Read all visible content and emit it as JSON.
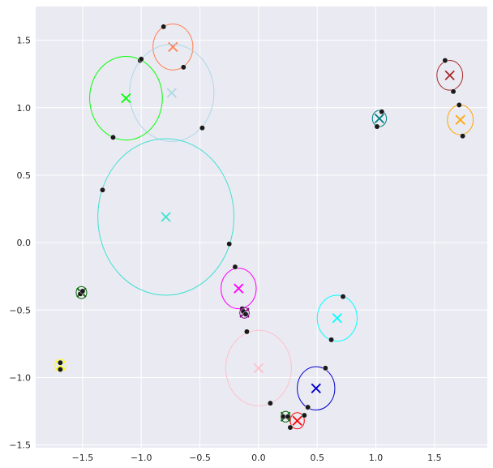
{
  "chart_data": {
    "type": "scatter",
    "title": "",
    "xlabel": "",
    "ylabel": "",
    "xlim": [
      -1.9,
      1.95
    ],
    "ylim": [
      -1.52,
      1.75
    ],
    "xticks": [
      -1.5,
      -1.0,
      -0.5,
      0.0,
      0.5,
      1.0,
      1.5
    ],
    "yticks": [
      -1.5,
      -1.0,
      -0.5,
      0.0,
      0.5,
      1.0,
      1.5
    ],
    "xtick_labels": [
      "−1.5",
      "−1.0",
      "−0.5",
      "0.0",
      "0.5",
      "1.0",
      "1.5"
    ],
    "ytick_labels": [
      "−1.5",
      "−1.0",
      "−0.5",
      "0.0",
      "0.5",
      "1.0",
      "1.5"
    ],
    "grid": true,
    "background": "#eaeaf2",
    "grid_color": "#ffffff",
    "clusters": [
      {
        "color": "#ff7f50",
        "center": [
          -0.73,
          1.45
        ],
        "radius": [
          0.17,
          0.17
        ],
        "points": [
          [
            -0.81,
            1.6
          ],
          [
            -0.64,
            1.3
          ]
        ]
      },
      {
        "color": "#add8e6",
        "center": [
          -0.74,
          1.11
        ],
        "radius": [
          0.36,
          0.36
        ],
        "points": [
          [
            -1.01,
            1.35
          ],
          [
            -0.48,
            0.85
          ]
        ]
      },
      {
        "color": "#00ff00",
        "center": [
          -1.13,
          1.07
        ],
        "radius": [
          0.31,
          0.31
        ],
        "points": [
          [
            -1.24,
            0.78
          ],
          [
            -1.0,
            1.36
          ]
        ]
      },
      {
        "color": "#40e0d0",
        "center": [
          -0.79,
          0.19
        ],
        "radius": [
          0.58,
          0.58
        ],
        "points": [
          [
            -1.33,
            0.39
          ],
          [
            -0.25,
            -0.01
          ]
        ]
      },
      {
        "color": "#ff00ff",
        "center": [
          -0.17,
          -0.34
        ],
        "radius": [
          0.15,
          0.15
        ],
        "points": [
          [
            -0.2,
            -0.18
          ],
          [
            -0.14,
            -0.49
          ]
        ]
      },
      {
        "color": "#800080",
        "center": [
          -0.12,
          -0.52
        ],
        "radius": [
          0.04,
          0.04
        ],
        "points": [
          [
            -0.13,
            -0.51
          ],
          [
            -0.11,
            -0.53
          ]
        ]
      },
      {
        "color": "#ffc0cb",
        "center": [
          0.0,
          -0.93
        ],
        "radius": [
          0.28,
          0.28
        ],
        "points": [
          [
            -0.1,
            -0.66
          ],
          [
            0.1,
            -1.19
          ]
        ]
      },
      {
        "color": "#00ffff",
        "center": [
          0.67,
          -0.56
        ],
        "radius": [
          0.17,
          0.17
        ],
        "points": [
          [
            0.72,
            -0.4
          ],
          [
            0.62,
            -0.72
          ]
        ]
      },
      {
        "color": "#0000cd",
        "center": [
          0.49,
          -1.08
        ],
        "radius": [
          0.16,
          0.16
        ],
        "points": [
          [
            0.57,
            -0.93
          ],
          [
            0.42,
            -1.22
          ]
        ]
      },
      {
        "color": "#ff0000",
        "center": [
          0.33,
          -1.32
        ],
        "radius": [
          0.06,
          0.06
        ],
        "points": [
          [
            0.39,
            -1.28
          ],
          [
            0.27,
            -1.37
          ]
        ]
      },
      {
        "color": "#006400",
        "center": [
          0.23,
          -1.29
        ],
        "radius": [
          0.04,
          0.04
        ],
        "points": [
          [
            0.21,
            -1.29
          ],
          [
            0.25,
            -1.29
          ]
        ]
      },
      {
        "color": "#008080",
        "center": [
          1.03,
          0.92
        ],
        "radius": [
          0.06,
          0.06
        ],
        "points": [
          [
            1.05,
            0.97
          ],
          [
            1.01,
            0.86
          ]
        ]
      },
      {
        "color": "#a52a2a",
        "center": [
          1.63,
          1.24
        ],
        "radius": [
          0.11,
          0.11
        ],
        "points": [
          [
            1.59,
            1.35
          ],
          [
            1.66,
            1.12
          ]
        ]
      },
      {
        "color": "#ffa500",
        "center": [
          1.72,
          0.91
        ],
        "radius": [
          0.11,
          0.11
        ],
        "points": [
          [
            1.71,
            1.02
          ],
          [
            1.74,
            0.79
          ]
        ]
      },
      {
        "color": "#006400",
        "center": [
          -1.51,
          -0.37
        ],
        "radius": [
          0.045,
          0.045
        ],
        "points": [
          [
            -1.52,
            -0.38
          ],
          [
            -1.5,
            -0.36
          ]
        ]
      },
      {
        "color": "#ffff00",
        "center": [
          -1.69,
          -0.91
        ],
        "radius": [
          0.045,
          0.045
        ],
        "points": [
          [
            -1.69,
            -0.89
          ],
          [
            -1.69,
            -0.94
          ]
        ]
      }
    ]
  }
}
